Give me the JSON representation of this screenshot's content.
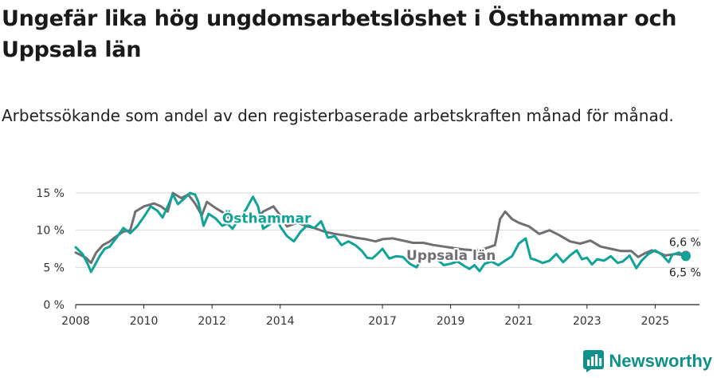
{
  "header": {
    "title": "Ungefär lika hög ungdomsarbetslöshet i Östhammar och Uppsala län",
    "subtitle": "Arbetssökande som andel av den registerbaserade arbetskraften månad för månad."
  },
  "branding": {
    "name": "Newsworthy"
  },
  "colors": {
    "osthammar": "#10a398",
    "uppsala": "#6f6f74",
    "grid": "#d9d9d9",
    "axis": "#222222"
  },
  "chart_data": {
    "type": "line",
    "title": "Ungefär lika hög ungdomsarbetslöshet i Östhammar och Uppsala län",
    "xlabel": "",
    "ylabel": "",
    "xlim": [
      2008,
      2026.3
    ],
    "ylim": [
      0,
      15
    ],
    "y_ticks": [
      0,
      5,
      10,
      15
    ],
    "y_tick_labels": [
      "0 %",
      "5 %",
      "10 %",
      "15 %"
    ],
    "x_ticks": [
      2008,
      2010,
      2012,
      2014,
      2017,
      2019,
      2021,
      2023,
      2025
    ],
    "x_tick_labels": [
      "2008",
      "2010",
      "2012",
      "2014",
      "2017",
      "2019",
      "2021",
      "2023",
      "2025"
    ],
    "series": [
      {
        "name": "Uppsala län",
        "label": "Uppsala län",
        "color": "#6f6f74",
        "end_label": "6,6 %",
        "points": [
          [
            2008.0,
            7.0
          ],
          [
            2008.3,
            6.3
          ],
          [
            2008.45,
            5.6
          ],
          [
            2008.6,
            7.0
          ],
          [
            2008.8,
            8.0
          ],
          [
            2009.0,
            8.5
          ],
          [
            2009.2,
            9.2
          ],
          [
            2009.4,
            9.8
          ],
          [
            2009.6,
            10.0
          ],
          [
            2009.75,
            12.5
          ],
          [
            2010.0,
            13.2
          ],
          [
            2010.3,
            13.6
          ],
          [
            2010.5,
            13.2
          ],
          [
            2010.7,
            12.5
          ],
          [
            2010.85,
            15.0
          ],
          [
            2011.1,
            14.3
          ],
          [
            2011.3,
            14.8
          ],
          [
            2011.5,
            13.6
          ],
          [
            2011.7,
            12.0
          ],
          [
            2011.85,
            13.8
          ],
          [
            2012.1,
            13.0
          ],
          [
            2012.35,
            12.3
          ],
          [
            2012.6,
            11.2
          ],
          [
            2013.0,
            12.0
          ],
          [
            2013.3,
            11.5
          ],
          [
            2013.5,
            12.5
          ],
          [
            2013.8,
            13.2
          ],
          [
            2014.0,
            12.0
          ],
          [
            2014.2,
            10.5
          ],
          [
            2014.5,
            11.0
          ],
          [
            2014.8,
            10.5
          ],
          [
            2015.0,
            10.3
          ],
          [
            2015.3,
            9.8
          ],
          [
            2015.6,
            9.5
          ],
          [
            2015.9,
            9.3
          ],
          [
            2016.2,
            9.0
          ],
          [
            2016.5,
            8.8
          ],
          [
            2016.8,
            8.5
          ],
          [
            2017.0,
            8.8
          ],
          [
            2017.3,
            8.9
          ],
          [
            2017.6,
            8.6
          ],
          [
            2017.9,
            8.3
          ],
          [
            2018.2,
            8.3
          ],
          [
            2018.5,
            8.0
          ],
          [
            2018.8,
            7.8
          ],
          [
            2019.1,
            7.6
          ],
          [
            2019.4,
            7.4
          ],
          [
            2019.7,
            7.3
          ],
          [
            2020.0,
            7.5
          ],
          [
            2020.3,
            8.0
          ],
          [
            2020.45,
            11.5
          ],
          [
            2020.6,
            12.5
          ],
          [
            2020.8,
            11.5
          ],
          [
            2021.0,
            11.0
          ],
          [
            2021.3,
            10.5
          ],
          [
            2021.6,
            9.5
          ],
          [
            2021.9,
            10.0
          ],
          [
            2022.2,
            9.3
          ],
          [
            2022.5,
            8.5
          ],
          [
            2022.8,
            8.2
          ],
          [
            2023.1,
            8.6
          ],
          [
            2023.4,
            7.8
          ],
          [
            2023.7,
            7.5
          ],
          [
            2024.0,
            7.2
          ],
          [
            2024.3,
            7.2
          ],
          [
            2024.5,
            6.4
          ],
          [
            2024.7,
            6.9
          ],
          [
            2024.9,
            7.3
          ],
          [
            2025.1,
            7.0
          ],
          [
            2025.3,
            6.6
          ],
          [
            2025.6,
            6.8
          ],
          [
            2025.9,
            6.6
          ]
        ]
      },
      {
        "name": "Östhammar",
        "label": "Östhammar",
        "color": "#10a398",
        "end_label": "6,5 %",
        "points": [
          [
            2008.0,
            7.7
          ],
          [
            2008.2,
            6.8
          ],
          [
            2008.35,
            5.5
          ],
          [
            2008.45,
            4.4
          ],
          [
            2008.55,
            5.2
          ],
          [
            2008.7,
            6.5
          ],
          [
            2008.85,
            7.5
          ],
          [
            2009.0,
            7.8
          ],
          [
            2009.2,
            9.0
          ],
          [
            2009.4,
            10.3
          ],
          [
            2009.6,
            9.6
          ],
          [
            2009.8,
            10.5
          ],
          [
            2010.0,
            11.8
          ],
          [
            2010.2,
            13.2
          ],
          [
            2010.4,
            12.6
          ],
          [
            2010.55,
            11.7
          ],
          [
            2010.7,
            13.2
          ],
          [
            2010.85,
            14.8
          ],
          [
            2011.0,
            13.5
          ],
          [
            2011.2,
            14.3
          ],
          [
            2011.35,
            15.0
          ],
          [
            2011.5,
            14.8
          ],
          [
            2011.6,
            13.8
          ],
          [
            2011.75,
            10.6
          ],
          [
            2011.9,
            12.2
          ],
          [
            2012.1,
            11.6
          ],
          [
            2012.3,
            10.6
          ],
          [
            2012.45,
            10.9
          ],
          [
            2012.6,
            10.2
          ],
          [
            2012.75,
            11.2
          ],
          [
            2013.0,
            12.8
          ],
          [
            2013.2,
            14.5
          ],
          [
            2013.35,
            13.2
          ],
          [
            2013.5,
            10.2
          ],
          [
            2013.7,
            10.8
          ],
          [
            2013.9,
            11.7
          ],
          [
            2014.0,
            10.5
          ],
          [
            2014.2,
            9.2
          ],
          [
            2014.4,
            8.5
          ],
          [
            2014.6,
            9.8
          ],
          [
            2014.8,
            10.7
          ],
          [
            2015.0,
            10.3
          ],
          [
            2015.2,
            11.2
          ],
          [
            2015.4,
            9.0
          ],
          [
            2015.6,
            9.2
          ],
          [
            2015.8,
            8.0
          ],
          [
            2016.0,
            8.5
          ],
          [
            2016.2,
            8.0
          ],
          [
            2016.4,
            7.2
          ],
          [
            2016.55,
            6.3
          ],
          [
            2016.7,
            6.2
          ],
          [
            2016.85,
            6.8
          ],
          [
            2017.0,
            7.5
          ],
          [
            2017.2,
            6.2
          ],
          [
            2017.4,
            6.5
          ],
          [
            2017.6,
            6.4
          ],
          [
            2017.8,
            5.5
          ],
          [
            2018.0,
            5.0
          ],
          [
            2018.2,
            6.7
          ],
          [
            2018.4,
            6.9
          ],
          [
            2018.6,
            6.1
          ],
          [
            2018.8,
            5.3
          ],
          [
            2019.0,
            5.5
          ],
          [
            2019.2,
            5.8
          ],
          [
            2019.4,
            5.2
          ],
          [
            2019.55,
            4.8
          ],
          [
            2019.7,
            5.3
          ],
          [
            2019.85,
            4.5
          ],
          [
            2020.0,
            5.5
          ],
          [
            2020.2,
            5.8
          ],
          [
            2020.4,
            5.3
          ],
          [
            2020.6,
            5.9
          ],
          [
            2020.8,
            6.5
          ],
          [
            2021.0,
            8.2
          ],
          [
            2021.2,
            8.9
          ],
          [
            2021.35,
            6.2
          ],
          [
            2021.5,
            6.0
          ],
          [
            2021.7,
            5.6
          ],
          [
            2021.9,
            5.9
          ],
          [
            2022.1,
            6.8
          ],
          [
            2022.3,
            5.7
          ],
          [
            2022.5,
            6.6
          ],
          [
            2022.7,
            7.3
          ],
          [
            2022.85,
            6.1
          ],
          [
            2023.0,
            6.3
          ],
          [
            2023.15,
            5.4
          ],
          [
            2023.3,
            6.1
          ],
          [
            2023.5,
            5.9
          ],
          [
            2023.7,
            6.5
          ],
          [
            2023.9,
            5.6
          ],
          [
            2024.05,
            5.8
          ],
          [
            2024.25,
            6.6
          ],
          [
            2024.45,
            4.9
          ],
          [
            2024.6,
            5.9
          ],
          [
            2024.8,
            6.8
          ],
          [
            2025.0,
            7.3
          ],
          [
            2025.2,
            6.7
          ],
          [
            2025.4,
            5.7
          ],
          [
            2025.5,
            6.7
          ],
          [
            2025.7,
            7.0
          ],
          [
            2025.9,
            6.5
          ]
        ]
      }
    ]
  }
}
